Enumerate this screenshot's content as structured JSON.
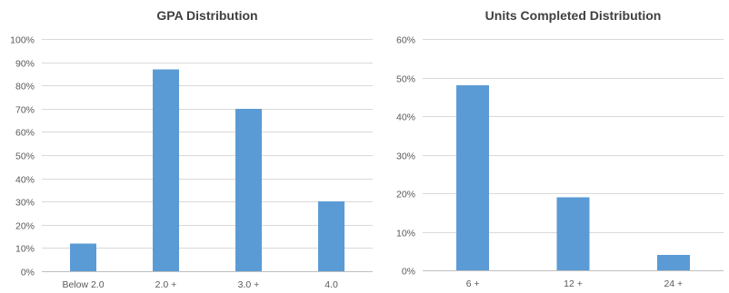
{
  "colors": {
    "bar": "#5b9bd5",
    "grid": "#d9d9d9",
    "text": "#595959",
    "title": "#404040"
  },
  "chart_data": [
    {
      "type": "bar",
      "title": "GPA Distribution",
      "categories": [
        "Below 2.0",
        "2.0 +",
        "3.0 +",
        "4.0"
      ],
      "values": [
        12,
        87,
        70,
        30
      ],
      "value_format": "percent",
      "ylim": [
        0,
        100
      ],
      "yticks": [
        0,
        10,
        20,
        30,
        40,
        50,
        60,
        70,
        80,
        90,
        100
      ],
      "ytick_labels": [
        "0%",
        "10%",
        "20%",
        "30%",
        "40%",
        "50%",
        "60%",
        "70%",
        "80%",
        "90%",
        "100%"
      ],
      "grid": true,
      "legend": "none",
      "xlabel": "",
      "ylabel": ""
    },
    {
      "type": "bar",
      "title": "Units Completed Distribution",
      "categories": [
        "6 +",
        "12 +",
        "24 +"
      ],
      "values": [
        48,
        19,
        4
      ],
      "value_format": "percent",
      "ylim": [
        0,
        60
      ],
      "yticks": [
        0,
        10,
        20,
        30,
        40,
        50,
        60
      ],
      "ytick_labels": [
        "0%",
        "10%",
        "20%",
        "30%",
        "40%",
        "50%",
        "60%"
      ],
      "grid": true,
      "legend": "none",
      "xlabel": "",
      "ylabel": ""
    }
  ]
}
